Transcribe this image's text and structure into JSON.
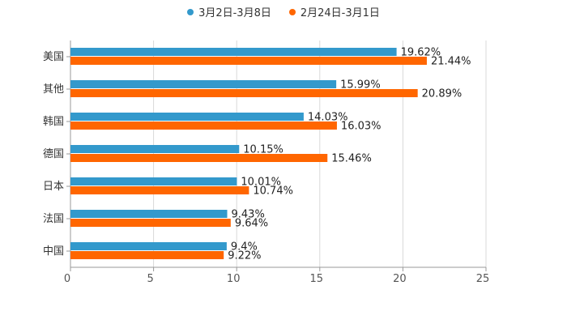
{
  "chart_data": {
    "type": "bar",
    "orientation": "horizontal",
    "categories": [
      "美国",
      "其他",
      "韩国",
      "德国",
      "日本",
      "法国",
      "中国"
    ],
    "series": [
      {
        "name": "3月2日-3月8日",
        "color": "#3399cc",
        "values": [
          19.62,
          15.99,
          14.03,
          10.15,
          10.01,
          9.43,
          9.4
        ],
        "labels": [
          "19.62%",
          "15.99%",
          "14.03%",
          "10.15%",
          "10.01%",
          "9.43%",
          "9.4%"
        ]
      },
      {
        "name": "2月24日-3月1日",
        "color": "#ff6600",
        "values": [
          21.44,
          20.89,
          16.03,
          15.46,
          10.74,
          9.64,
          9.22
        ],
        "labels": [
          "21.44%",
          "20.89%",
          "16.03%",
          "15.46%",
          "10.74%",
          "9.64%",
          "9.22%"
        ]
      }
    ],
    "xlim": [
      0,
      25
    ],
    "xticks": [
      "0",
      "5",
      "10",
      "15",
      "20",
      "25"
    ],
    "grid": true,
    "legend_position": "top-center"
  }
}
